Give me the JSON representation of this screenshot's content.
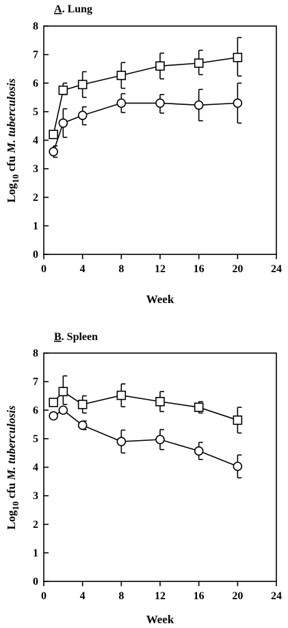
{
  "chart_data": [
    {
      "type": "line",
      "title_prefix": "A",
      "title_rest": ". Lung",
      "xlabel": "Week",
      "ylabel_prefix": "Log",
      "ylabel_sub": "10",
      "ylabel_plain": " cfu ",
      "ylabel_italic": "M. tuberculosis",
      "xlim": [
        0,
        24
      ],
      "ylim": [
        0,
        8
      ],
      "xticks": [
        "0",
        "4",
        "8",
        "12",
        "16",
        "20",
        "24"
      ],
      "yticks": [
        "0",
        "1",
        "2",
        "3",
        "4",
        "5",
        "6",
        "7",
        "8"
      ],
      "grid": false,
      "legend": "none",
      "series": [
        {
          "marker": "square",
          "x": [
            1,
            2,
            4,
            8,
            12,
            16,
            20
          ],
          "y": [
            4.2,
            5.75,
            5.95,
            6.27,
            6.6,
            6.7,
            6.9
          ],
          "err_upper": [
            0,
            0.25,
            0.45,
            0.45,
            0.45,
            0.45,
            0.7
          ],
          "err_lower": [
            0,
            0.15,
            0.45,
            0.45,
            0.45,
            0.4,
            0.65
          ]
        },
        {
          "marker": "circle",
          "x": [
            1,
            2,
            4,
            8,
            12,
            16,
            20
          ],
          "y": [
            3.6,
            4.6,
            4.87,
            5.3,
            5.3,
            5.23,
            5.3
          ],
          "err_upper": [
            0.2,
            0.5,
            0.3,
            0.33,
            0.3,
            0.55,
            0.7
          ],
          "err_lower": [
            0.2,
            0.5,
            0.33,
            0.33,
            0.35,
            0.55,
            0.7
          ]
        }
      ]
    },
    {
      "type": "line",
      "title_prefix": "B",
      "title_rest": ". Spleen",
      "xlabel": "Week",
      "ylabel_prefix": "Log",
      "ylabel_sub": "10",
      "ylabel_plain": " cfu ",
      "ylabel_italic": "M. tuberculosis",
      "xlim": [
        0,
        24
      ],
      "ylim": [
        0,
        8
      ],
      "xticks": [
        "0",
        "4",
        "8",
        "12",
        "16",
        "20",
        "24"
      ],
      "yticks": [
        "0",
        "1",
        "2",
        "3",
        "4",
        "5",
        "6",
        "7",
        "8"
      ],
      "grid": false,
      "legend": "none",
      "series": [
        {
          "marker": "square",
          "x": [
            1,
            2,
            4,
            8,
            12,
            16,
            20
          ],
          "y": [
            6.27,
            6.65,
            6.2,
            6.52,
            6.3,
            6.1,
            5.65
          ],
          "err_upper": [
            0,
            0.55,
            0.3,
            0.4,
            0.35,
            0.2,
            0.45
          ],
          "err_lower": [
            0,
            0.45,
            0.3,
            0.4,
            0.35,
            0.2,
            0.45
          ]
        },
        {
          "marker": "circle",
          "x": [
            1,
            2,
            4,
            8,
            12,
            16,
            20
          ],
          "y": [
            5.8,
            6.0,
            5.47,
            4.9,
            4.97,
            4.57,
            4.03
          ],
          "err_upper": [
            0,
            0,
            0.15,
            0.4,
            0.35,
            0.3,
            0.4
          ],
          "err_lower": [
            0,
            0,
            0.15,
            0.4,
            0.35,
            0.3,
            0.4
          ]
        }
      ]
    }
  ]
}
